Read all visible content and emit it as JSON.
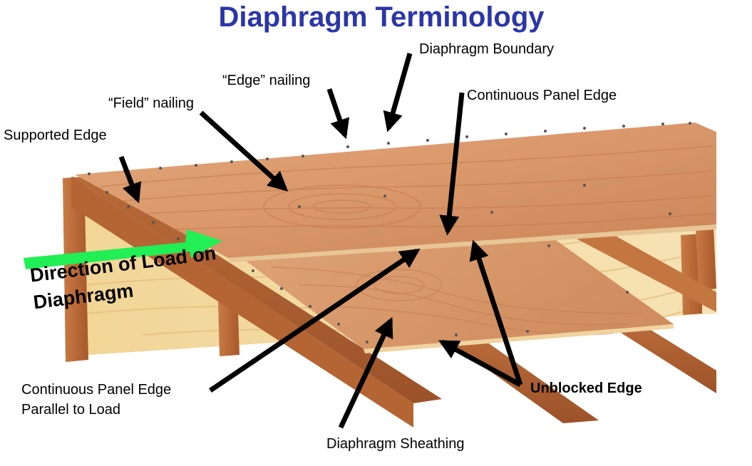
{
  "title": "Diaphragm Terminology",
  "labels": {
    "diaphragm_boundary": "Diaphragm Boundary",
    "edge_nailing": "“Edge” nailing",
    "field_nailing": "“Field” nailing",
    "supported_edge": "Supported Edge",
    "continuous_panel_edge": "Continuous Panel Edge",
    "continuous_panel_edge_parallel_line1": "Continuous Panel Edge",
    "continuous_panel_edge_parallel_line2": "Parallel to Load",
    "unblocked_edge": "Unblocked Edge",
    "diaphragm_sheathing": "Diaphragm Sheathing",
    "load_direction_line1": "Direction of Load on",
    "load_direction_line2": "Diaphragm"
  },
  "colors": {
    "title": "#2b36a8",
    "load_arrow": "#22ee55",
    "callout_arrow": "#000000",
    "wood_light": "#e9b988",
    "wood_mid": "#d28a55",
    "wood_dark": "#a95a2c",
    "plywood": "#f3d9a0"
  }
}
